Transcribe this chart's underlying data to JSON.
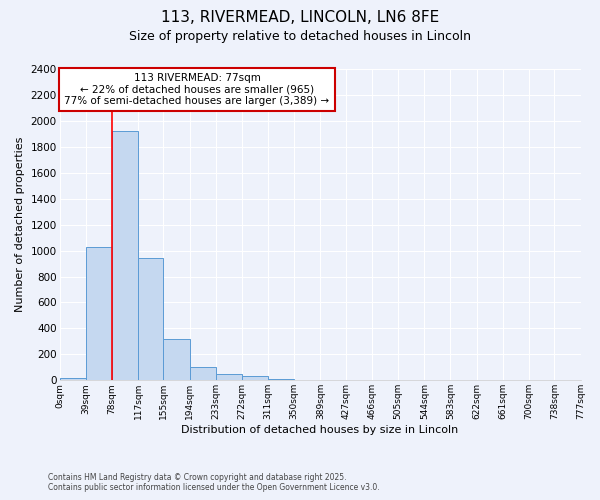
{
  "title_line1": "113, RIVERMEAD, LINCOLN, LN6 8FE",
  "title_line2": "Size of property relative to detached houses in Lincoln",
  "xlabel": "Distribution of detached houses by size in Lincoln",
  "ylabel": "Number of detached properties",
  "bin_edges": [
    0,
    39,
    78,
    117,
    155,
    194,
    233,
    272,
    311,
    350,
    389,
    427,
    466,
    505,
    544,
    583,
    622,
    661,
    700,
    738,
    777
  ],
  "bin_labels": [
    "0sqm",
    "39sqm",
    "78sqm",
    "117sqm",
    "155sqm",
    "194sqm",
    "233sqm",
    "272sqm",
    "311sqm",
    "350sqm",
    "389sqm",
    "427sqm",
    "466sqm",
    "505sqm",
    "544sqm",
    "583sqm",
    "622sqm",
    "661sqm",
    "700sqm",
    "738sqm",
    "777sqm"
  ],
  "bar_heights": [
    15,
    1030,
    1920,
    940,
    320,
    105,
    50,
    30,
    10,
    5,
    5,
    3,
    2,
    2,
    2,
    2,
    2,
    2,
    2,
    2
  ],
  "bar_color": "#c5d8f0",
  "bar_edge_color": "#5b9bd5",
  "red_line_x": 78,
  "annotation_text": "113 RIVERMEAD: 77sqm\n← 22% of detached houses are smaller (965)\n77% of semi-detached houses are larger (3,389) →",
  "annotation_box_color": "#ffffff",
  "annotation_box_edge": "#cc0000",
  "ylim": [
    0,
    2400
  ],
  "yticks": [
    0,
    200,
    400,
    600,
    800,
    1000,
    1200,
    1400,
    1600,
    1800,
    2000,
    2200,
    2400
  ],
  "background_color": "#eef2fb",
  "grid_color": "#ffffff",
  "footer_line1": "Contains HM Land Registry data © Crown copyright and database right 2025.",
  "footer_line2": "Contains public sector information licensed under the Open Government Licence v3.0."
}
